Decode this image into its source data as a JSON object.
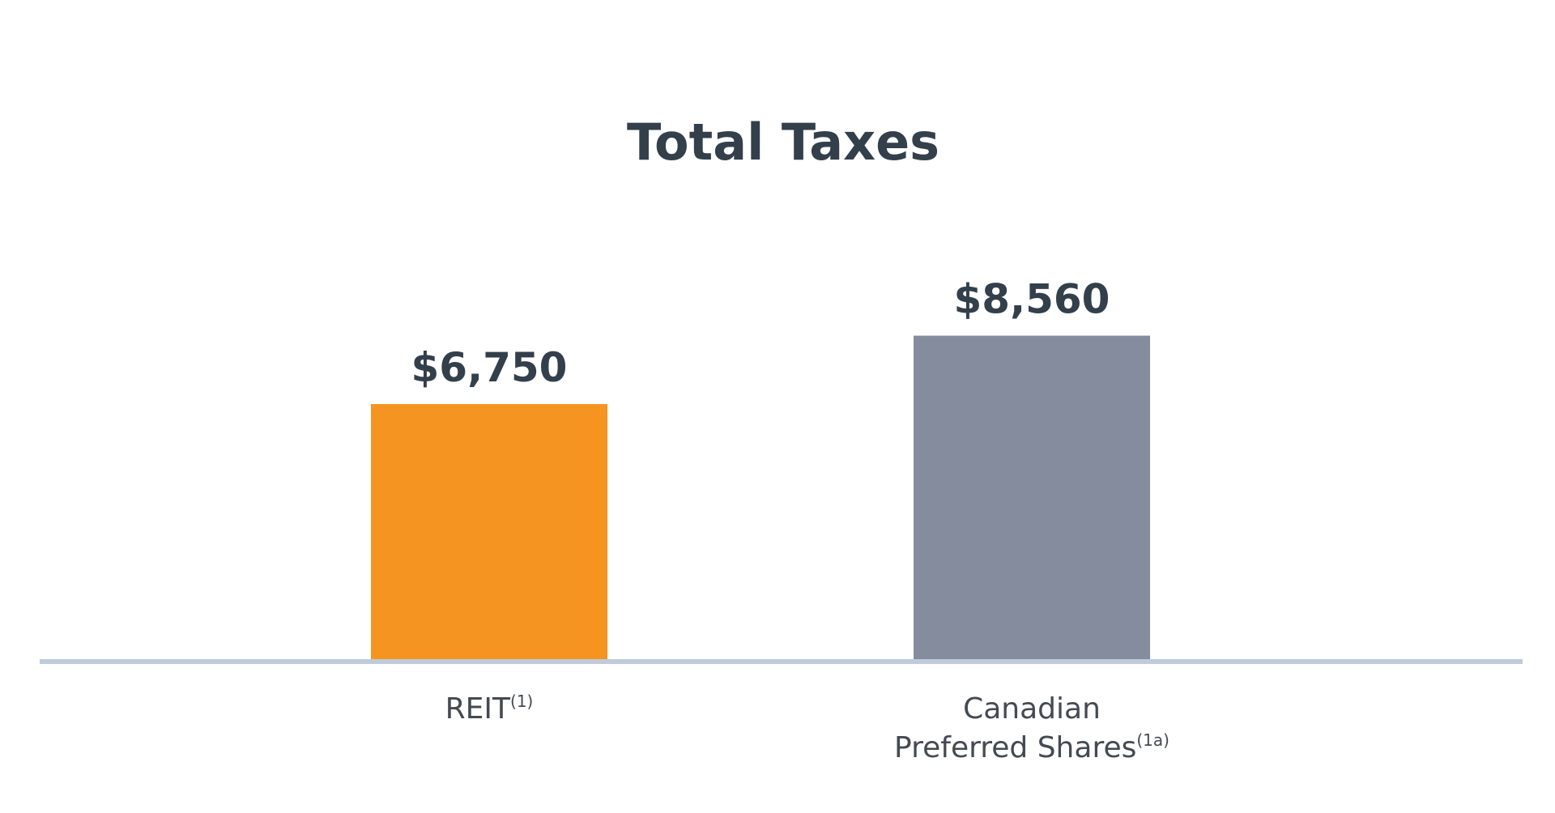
{
  "chart_data": {
    "type": "bar",
    "title": "Total Taxes",
    "categories": [
      {
        "label": "REIT",
        "sup": "(1)"
      },
      {
        "label": "Canadian\nPreferred Shares",
        "sup": "(1a)"
      }
    ],
    "values": [
      6750,
      8560
    ],
    "value_labels": [
      "$6,750",
      "$8,560"
    ],
    "colors": [
      "#F59420",
      "#848C9E"
    ],
    "ylim": [
      0,
      10000
    ],
    "xlabel": "",
    "ylabel": "",
    "grid": false,
    "legend": "none"
  },
  "colors": {
    "title": "#333F4B",
    "value_label": "#333F4B",
    "category_label": "#444A52",
    "axis": "#BFCBDC"
  }
}
